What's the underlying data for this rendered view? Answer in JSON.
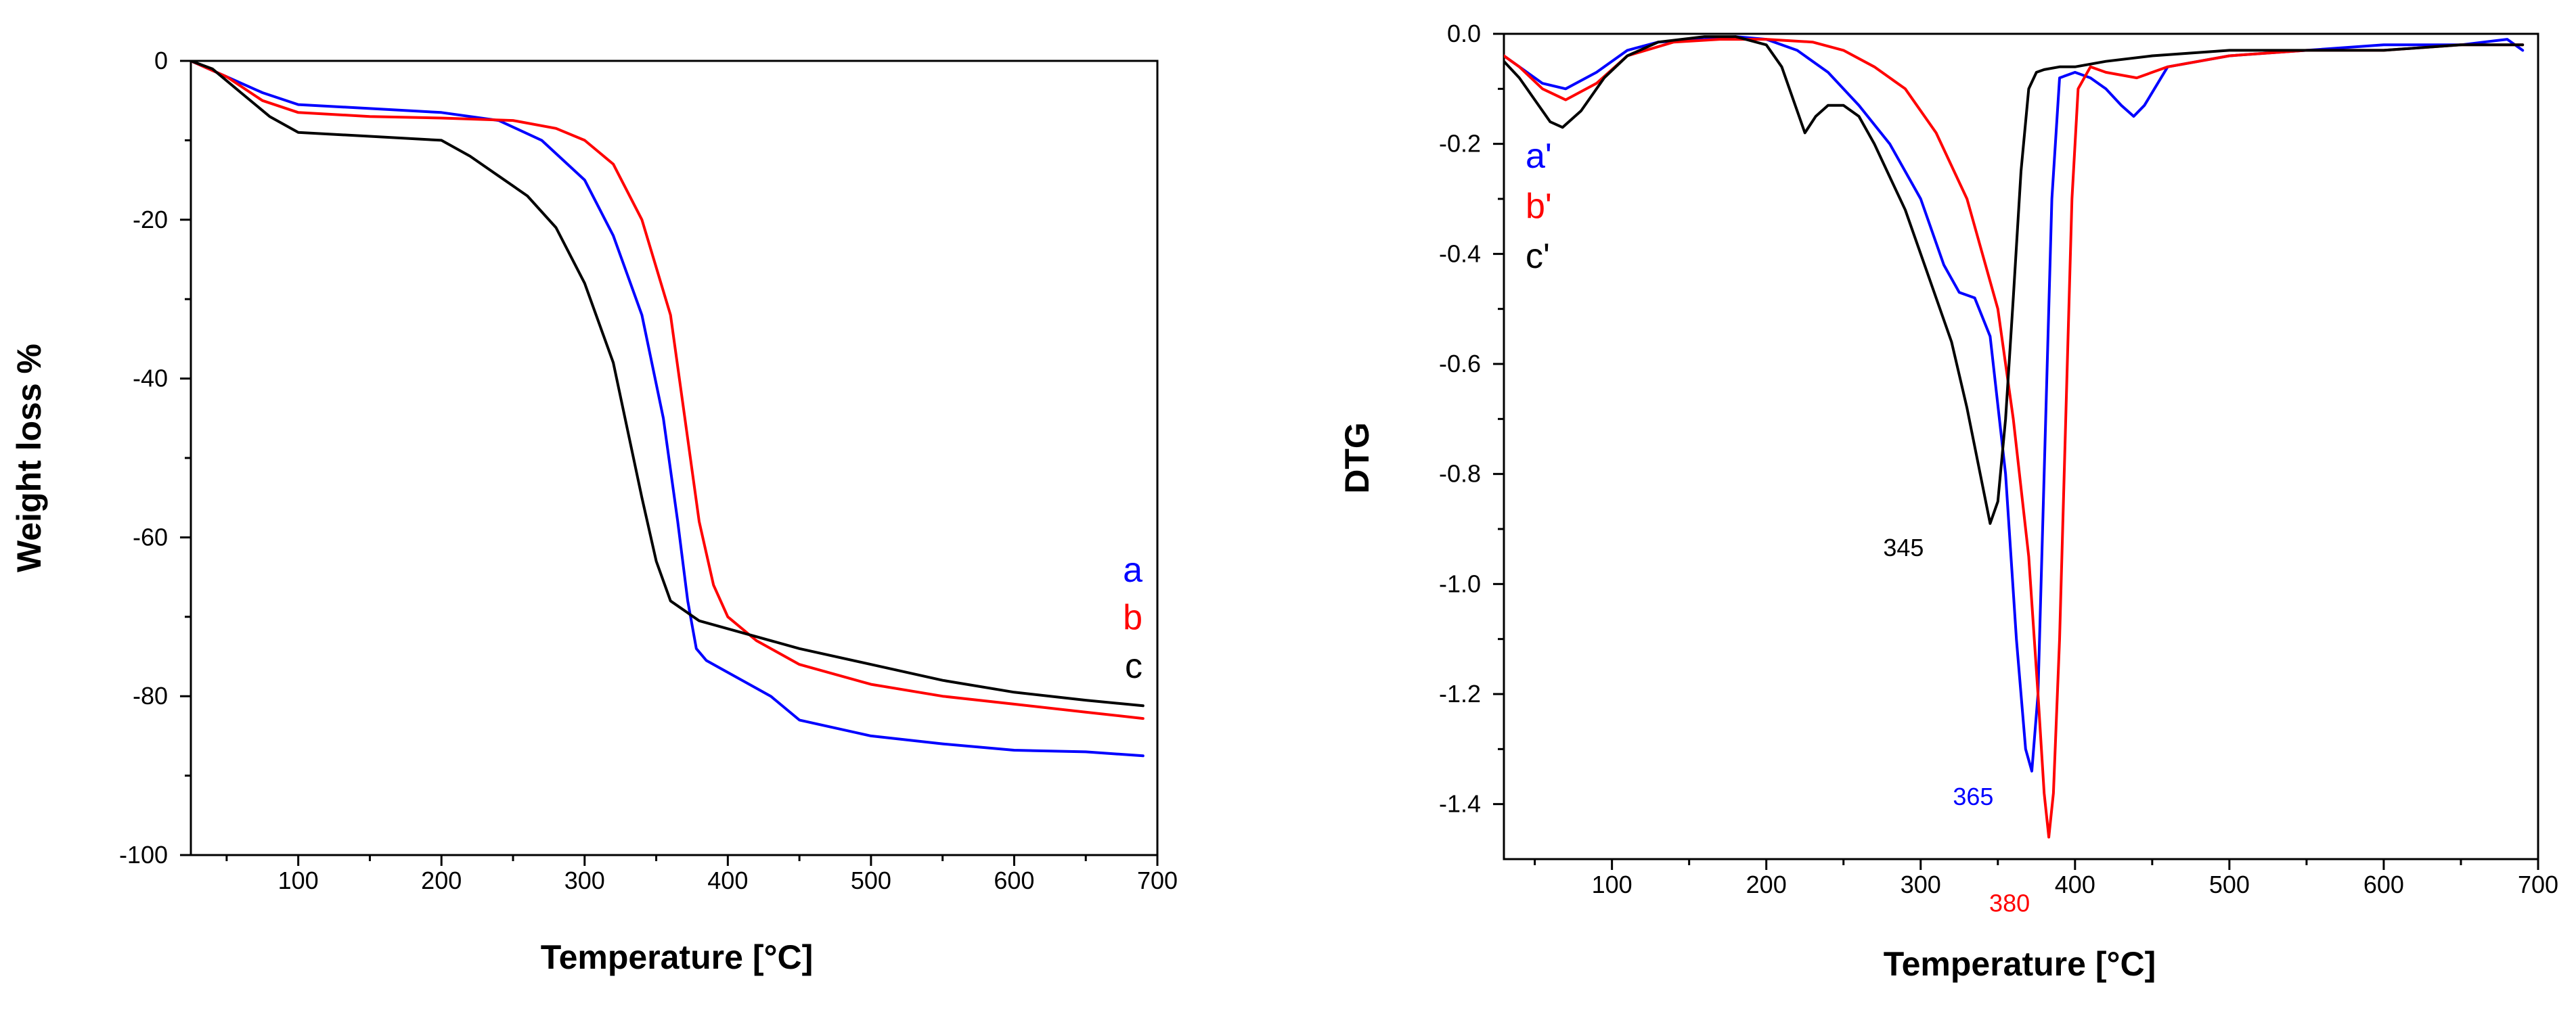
{
  "colors": {
    "a": "#0000ff",
    "b": "#ff0000",
    "c": "#000000"
  },
  "chart_data": [
    {
      "type": "line",
      "id": "tga",
      "xlabel": "Temperature [°C]",
      "ylabel": "Weight loss %",
      "xlim": [
        25,
        700
      ],
      "ylim": [
        -100,
        0
      ],
      "xticks": [
        100,
        200,
        300,
        400,
        500,
        600,
        700
      ],
      "yticks": [
        0,
        -20,
        -40,
        -60,
        -80,
        -100
      ],
      "legend": [
        {
          "text": "a",
          "series": "a"
        },
        {
          "text": "b",
          "series": "b"
        },
        {
          "text": "c",
          "series": "c"
        }
      ],
      "series": [
        {
          "name": "a",
          "color": "#0000ff",
          "x": [
            25,
            50,
            75,
            100,
            150,
            200,
            240,
            270,
            300,
            320,
            340,
            355,
            365,
            372,
            378,
            385,
            400,
            430,
            450,
            475,
            500,
            550,
            600,
            650,
            690
          ],
          "y": [
            0,
            -2,
            -4,
            -5.5,
            -6,
            -6.5,
            -7.5,
            -10,
            -15,
            -22,
            -32,
            -45,
            -58,
            -68,
            -74,
            -75.5,
            -77,
            -80,
            -83,
            -84,
            -85,
            -86,
            -86.8,
            -87,
            -87.5
          ]
        },
        {
          "name": "b",
          "color": "#ff0000",
          "x": [
            25,
            50,
            75,
            100,
            150,
            200,
            250,
            280,
            300,
            320,
            340,
            360,
            370,
            380,
            390,
            400,
            420,
            450,
            500,
            550,
            600,
            650,
            690
          ],
          "y": [
            0,
            -2,
            -5,
            -6.5,
            -7,
            -7.2,
            -7.5,
            -8.5,
            -10,
            -13,
            -20,
            -32,
            -45,
            -58,
            -66,
            -70,
            -73,
            -76,
            -78.5,
            -80,
            -81,
            -82,
            -82.8
          ]
        },
        {
          "name": "c",
          "color": "#000000",
          "x": [
            25,
            40,
            60,
            80,
            100,
            150,
            200,
            220,
            240,
            260,
            280,
            300,
            320,
            340,
            350,
            360,
            380,
            400,
            450,
            500,
            550,
            600,
            650,
            690
          ],
          "y": [
            0,
            -1,
            -4,
            -7,
            -9,
            -9.5,
            -10,
            -12,
            -14.5,
            -17,
            -21,
            -28,
            -38,
            -55,
            -63,
            -68,
            -70.5,
            -71.5,
            -74,
            -76,
            -78,
            -79.5,
            -80.5,
            -81.2
          ]
        }
      ]
    },
    {
      "type": "line",
      "id": "dtg",
      "xlabel": "Temperature [°C]",
      "ylabel": "DTG",
      "xlim": [
        30,
        700
      ],
      "ylim": [
        -1.5,
        0
      ],
      "xticks": [
        100,
        200,
        300,
        400,
        500,
        600,
        700
      ],
      "yticks": [
        "0.0",
        "-0.2",
        "-0.4",
        "-0.6",
        "-0.8",
        "-1.0",
        "-1.2",
        "-1.4"
      ],
      "legend": [
        {
          "text": "a'",
          "series": "a"
        },
        {
          "text": "b'",
          "series": "b"
        },
        {
          "text": "c'",
          "series": "c"
        }
      ],
      "annotations": [
        {
          "text": "345",
          "series": "c",
          "x": 345,
          "y": -0.89
        },
        {
          "text": "365",
          "series": "a",
          "x": 370,
          "y": -1.34
        },
        {
          "text": "380",
          "series": "b",
          "x": 383,
          "y": -1.46
        }
      ],
      "series": [
        {
          "name": "a'",
          "color": "#0000ff",
          "x": [
            30,
            40,
            55,
            70,
            90,
            110,
            130,
            160,
            180,
            200,
            220,
            240,
            260,
            280,
            300,
            315,
            325,
            335,
            345,
            355,
            362,
            368,
            372,
            376,
            380,
            385,
            390,
            400,
            410,
            420,
            430,
            438,
            445,
            460,
            500,
            550,
            600,
            650,
            680,
            690
          ],
          "y": [
            -0.04,
            -0.06,
            -0.09,
            -0.1,
            -0.07,
            -0.03,
            -0.015,
            -0.01,
            -0.005,
            -0.01,
            -0.03,
            -0.07,
            -0.13,
            -0.2,
            -0.3,
            -0.42,
            -0.47,
            -0.48,
            -0.55,
            -0.8,
            -1.1,
            -1.3,
            -1.34,
            -1.2,
            -0.8,
            -0.3,
            -0.08,
            -0.07,
            -0.08,
            -0.1,
            -0.13,
            -0.15,
            -0.13,
            -0.06,
            -0.04,
            -0.03,
            -0.02,
            -0.02,
            -0.01,
            -0.03
          ]
        },
        {
          "name": "b'",
          "color": "#ff0000",
          "x": [
            30,
            40,
            55,
            70,
            90,
            110,
            140,
            170,
            200,
            230,
            250,
            270,
            290,
            310,
            330,
            350,
            360,
            370,
            376,
            380,
            383,
            386,
            390,
            394,
            398,
            402,
            410,
            420,
            440,
            460,
            500,
            550,
            600,
            650,
            690
          ],
          "y": [
            -0.04,
            -0.06,
            -0.1,
            -0.12,
            -0.09,
            -0.04,
            -0.015,
            -0.01,
            -0.01,
            -0.015,
            -0.03,
            -0.06,
            -0.1,
            -0.18,
            -0.3,
            -0.5,
            -0.7,
            -0.95,
            -1.2,
            -1.38,
            -1.46,
            -1.38,
            -1.1,
            -0.7,
            -0.3,
            -0.1,
            -0.06,
            -0.07,
            -0.08,
            -0.06,
            -0.04,
            -0.03,
            -0.03,
            -0.02,
            -0.02
          ]
        },
        {
          "name": "c'",
          "color": "#000000",
          "x": [
            30,
            40,
            50,
            60,
            68,
            80,
            95,
            110,
            130,
            160,
            180,
            200,
            210,
            220,
            225,
            232,
            240,
            250,
            260,
            270,
            280,
            290,
            300,
            310,
            320,
            330,
            340,
            345,
            350,
            355,
            360,
            365,
            370,
            375,
            380,
            390,
            400,
            420,
            450,
            500,
            550,
            600,
            650,
            690
          ],
          "y": [
            -0.05,
            -0.08,
            -0.12,
            -0.16,
            -0.17,
            -0.14,
            -0.08,
            -0.04,
            -0.015,
            -0.005,
            -0.005,
            -0.02,
            -0.06,
            -0.14,
            -0.18,
            -0.15,
            -0.13,
            -0.13,
            -0.15,
            -0.2,
            -0.26,
            -0.32,
            -0.4,
            -0.48,
            -0.56,
            -0.68,
            -0.82,
            -0.89,
            -0.85,
            -0.7,
            -0.48,
            -0.25,
            -0.1,
            -0.07,
            -0.065,
            -0.06,
            -0.06,
            -0.05,
            -0.04,
            -0.03,
            -0.03,
            -0.03,
            -0.02,
            -0.02
          ]
        }
      ]
    }
  ]
}
